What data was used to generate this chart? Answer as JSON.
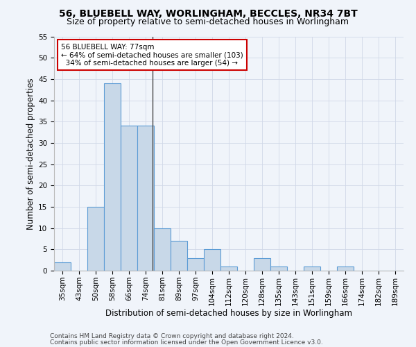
{
  "title": "56, BLUEBELL WAY, WORLINGHAM, BECCLES, NR34 7BT",
  "subtitle": "Size of property relative to semi-detached houses in Worlingham",
  "xlabel": "Distribution of semi-detached houses by size in Worlingham",
  "ylabel": "Number of semi-detached properties",
  "categories": [
    "35sqm",
    "43sqm",
    "50sqm",
    "58sqm",
    "66sqm",
    "74sqm",
    "81sqm",
    "89sqm",
    "97sqm",
    "104sqm",
    "112sqm",
    "120sqm",
    "128sqm",
    "135sqm",
    "143sqm",
    "151sqm",
    "159sqm",
    "166sqm",
    "174sqm",
    "182sqm",
    "189sqm"
  ],
  "values": [
    2,
    0,
    15,
    44,
    34,
    34,
    10,
    7,
    3,
    5,
    1,
    0,
    3,
    1,
    0,
    1,
    0,
    1,
    0,
    0,
    0
  ],
  "bar_color": "#c8d8e8",
  "bar_edge_color": "#5b9bd5",
  "subject_value_sqm": 77,
  "subject_label": "56 BLUEBELL WAY: 77sqm",
  "pct_smaller": 64,
  "n_smaller": 103,
  "pct_larger": 34,
  "n_larger": 54,
  "annotation_box_color": "#ffffff",
  "annotation_box_edge_color": "#cc0000",
  "ylim": [
    0,
    55
  ],
  "yticks": [
    0,
    5,
    10,
    15,
    20,
    25,
    30,
    35,
    40,
    45,
    50,
    55
  ],
  "grid_color": "#d0d8e8",
  "background_color": "#f0f4fa",
  "footer_line1": "Contains HM Land Registry data © Crown copyright and database right 2024.",
  "footer_line2": "Contains public sector information licensed under the Open Government Licence v3.0.",
  "title_fontsize": 10,
  "subtitle_fontsize": 9,
  "xlabel_fontsize": 8.5,
  "ylabel_fontsize": 8.5,
  "tick_fontsize": 7.5,
  "footer_fontsize": 6.5
}
